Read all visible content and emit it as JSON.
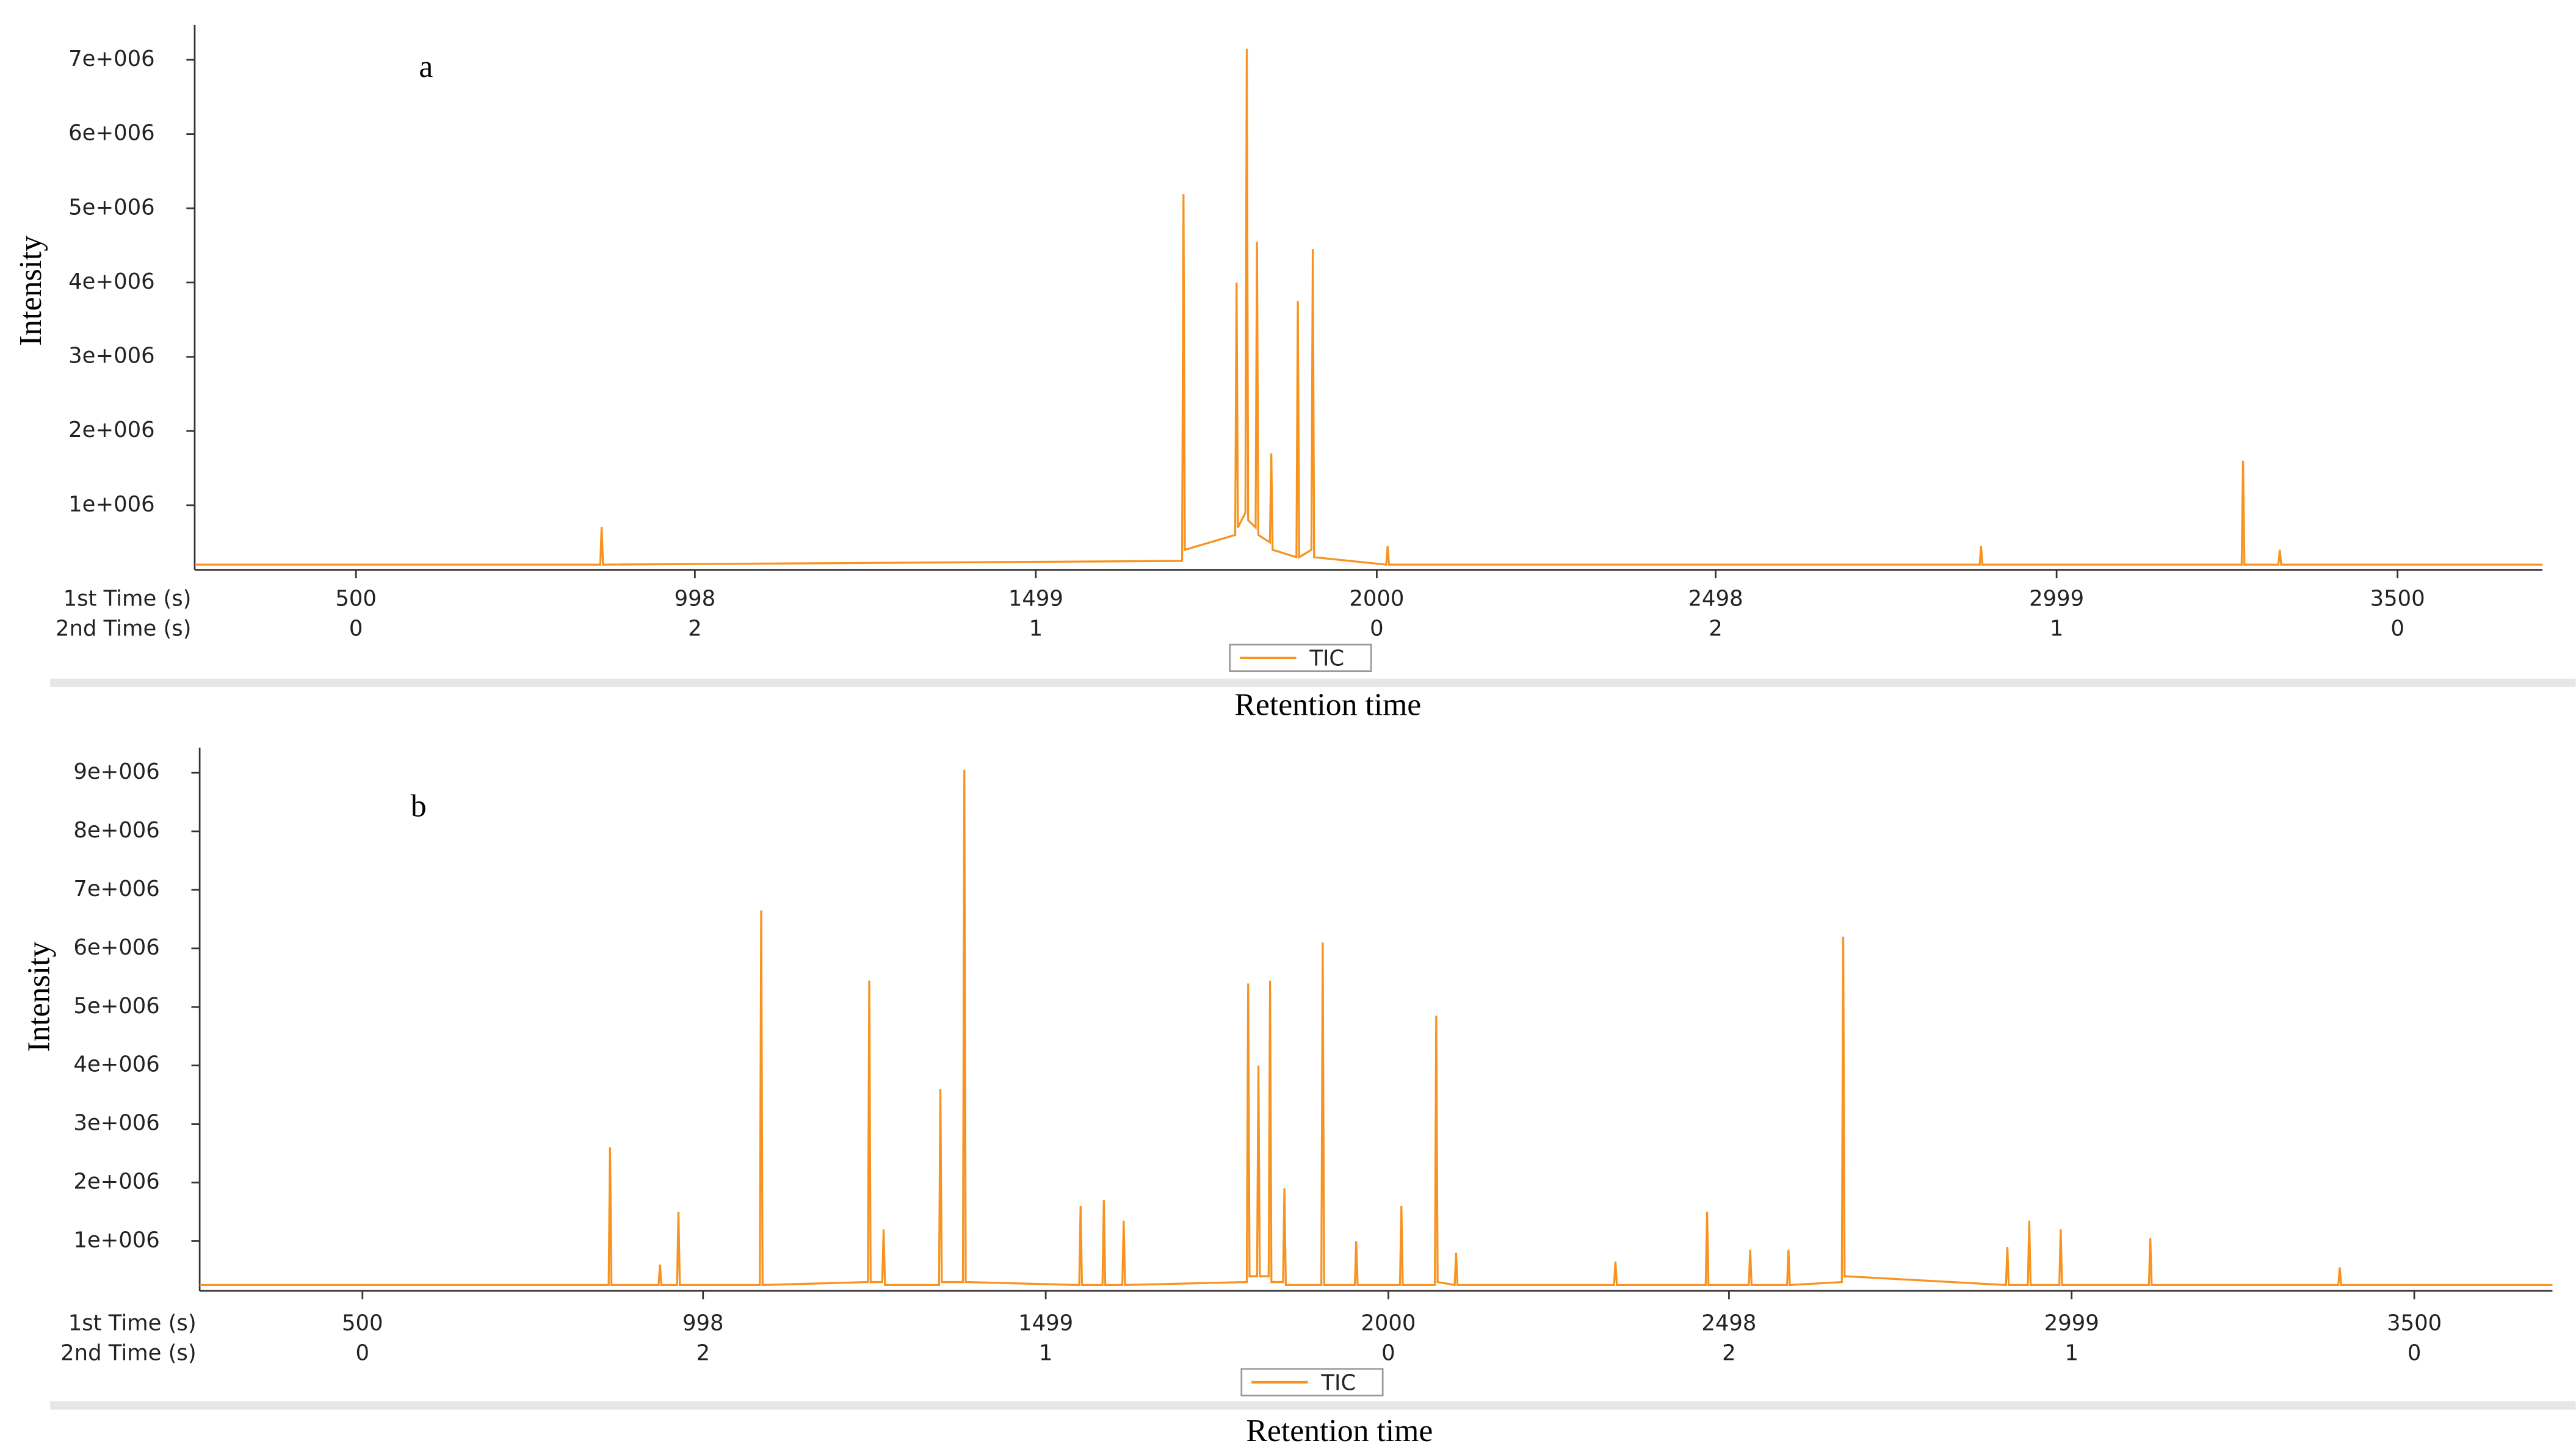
{
  "chart_data": [
    {
      "type": "line",
      "panel_label": "a",
      "y_label": "Intensity",
      "x_label": "Retention time",
      "x_row_labels": [
        "1st Time (s)",
        "2nd Time (s)"
      ],
      "xlim": [
        263,
        3713
      ],
      "ylim": [
        130000,
        7470000
      ],
      "xticks": [
        500,
        998,
        1499,
        2000,
        2498,
        2999,
        3500
      ],
      "second_time": [
        0,
        2,
        1,
        0,
        2,
        1,
        0
      ],
      "yticks": [
        {
          "value": 1000000,
          "label": "1e+006"
        },
        {
          "value": 2000000,
          "label": "2e+006"
        },
        {
          "value": 3000000,
          "label": "3e+006"
        },
        {
          "value": 4000000,
          "label": "4e+006"
        },
        {
          "value": 5000000,
          "label": "5e+006"
        },
        {
          "value": 6000000,
          "label": "6e+006"
        },
        {
          "value": 7000000,
          "label": "7e+006"
        }
      ],
      "legend_position": "bottom",
      "x": [
        263,
        859,
        861,
        863,
        1714,
        1716,
        1718,
        1792,
        1794,
        1796,
        1807,
        1809,
        1811,
        1822,
        1824,
        1826,
        1843,
        1845,
        1847,
        1882,
        1884,
        1886,
        1904,
        1906,
        1908,
        2014,
        2016,
        2018,
        2886,
        2888,
        2890,
        3271,
        3273,
        3275,
        3325,
        3327,
        3329,
        3713
      ],
      "series": [
        {
          "name": "TIC",
          "color": "#f7931e",
          "values": [
            200000,
            200000,
            710000,
            200000,
            250000,
            5190000,
            400000,
            600000,
            4000000,
            700000,
            900000,
            7150000,
            800000,
            700000,
            4550000,
            600000,
            500000,
            1700000,
            400000,
            300000,
            3750000,
            300000,
            400000,
            4450000,
            300000,
            200000,
            450000,
            200000,
            200000,
            450000,
            200000,
            200000,
            1600000,
            200000,
            200000,
            400000,
            200000,
            200000
          ]
        }
      ]
    },
    {
      "type": "line",
      "panel_label": "b",
      "y_label": "Intensity",
      "x_label": "Retention time",
      "x_row_labels": [
        "1st Time (s)",
        "2nd Time (s)"
      ],
      "xlim": [
        262,
        3702
      ],
      "ylim": [
        150000,
        9430000
      ],
      "xticks": [
        500,
        998,
        1499,
        2000,
        2498,
        2999,
        3500
      ],
      "second_time": [
        0,
        2,
        1,
        0,
        2,
        1,
        0
      ],
      "yticks": [
        {
          "value": 1000000,
          "label": "1e+006"
        },
        {
          "value": 2000000,
          "label": "2e+006"
        },
        {
          "value": 3000000,
          "label": "3e+006"
        },
        {
          "value": 4000000,
          "label": "4e+006"
        },
        {
          "value": 5000000,
          "label": "5e+006"
        },
        {
          "value": 6000000,
          "label": "6e+006"
        },
        {
          "value": 7000000,
          "label": "7e+006"
        },
        {
          "value": 8000000,
          "label": "8e+006"
        },
        {
          "value": 9000000,
          "label": "9e+006"
        }
      ],
      "legend_position": "bottom",
      "x": [
        262,
        860,
        862,
        864,
        933,
        935,
        937,
        960,
        962,
        964,
        1081,
        1083,
        1085,
        1239,
        1241,
        1243,
        1260,
        1262,
        1264,
        1343,
        1345,
        1347,
        1378,
        1380,
        1382,
        1548,
        1550,
        1552,
        1582,
        1584,
        1586,
        1611,
        1613,
        1615,
        1793,
        1795,
        1797,
        1808,
        1810,
        1812,
        1825,
        1827,
        1829,
        1846,
        1848,
        1850,
        1902,
        1904,
        1906,
        1951,
        1953,
        1955,
        2017,
        2019,
        2021,
        2068,
        2070,
        2072,
        2097,
        2099,
        2101,
        2330,
        2332,
        2334,
        2464,
        2466,
        2468,
        2527,
        2529,
        2531,
        2583,
        2585,
        2587,
        2663,
        2665,
        2667,
        2903,
        2905,
        2907,
        2935,
        2937,
        2939,
        2981,
        2983,
        2985,
        3112,
        3114,
        3116,
        3389,
        3391,
        3393,
        3702
      ],
      "series": [
        {
          "name": "TIC",
          "color": "#f7931e",
          "values": [
            250000,
            250000,
            2600000,
            250000,
            250000,
            600000,
            250000,
            250000,
            1500000,
            250000,
            250000,
            6650000,
            250000,
            300000,
            5450000,
            300000,
            300000,
            1200000,
            250000,
            250000,
            3600000,
            300000,
            300000,
            9050000,
            300000,
            250000,
            1600000,
            250000,
            250000,
            1700000,
            250000,
            250000,
            1350000,
            250000,
            300000,
            5400000,
            400000,
            400000,
            4000000,
            400000,
            400000,
            5450000,
            300000,
            300000,
            1900000,
            250000,
            250000,
            6100000,
            250000,
            250000,
            1000000,
            250000,
            250000,
            1600000,
            250000,
            250000,
            4850000,
            300000,
            250000,
            800000,
            250000,
            250000,
            650000,
            250000,
            250000,
            1500000,
            250000,
            250000,
            850000,
            250000,
            250000,
            850000,
            250000,
            300000,
            6200000,
            400000,
            250000,
            900000,
            250000,
            250000,
            1350000,
            250000,
            250000,
            1200000,
            250000,
            250000,
            1050000,
            250000,
            250000,
            550000,
            250000,
            250000
          ]
        }
      ]
    }
  ]
}
